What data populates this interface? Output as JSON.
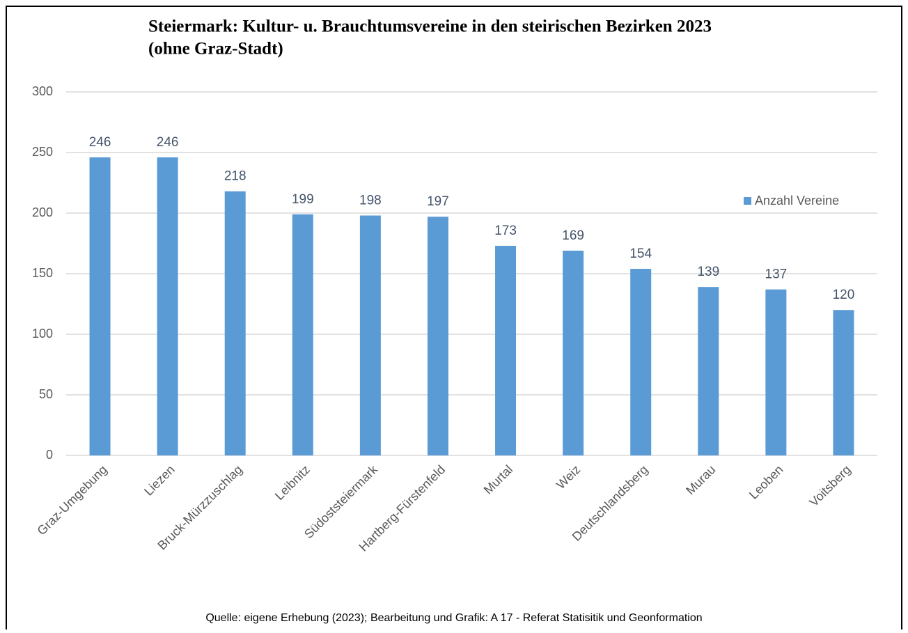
{
  "chart_data": {
    "type": "bar",
    "title": "Steiermark: Kultur- u. Brauchtumsvereine in den steirischen Bezirken 2023",
    "subtitle": "(ohne Graz-Stadt)",
    "source": "Quelle: eigene Erhebung (2023); Bearbeitung und Grafik: A 17 - Referat Statisitik und Geonformation",
    "categories": [
      "Graz-Umgebung",
      "Liezen",
      "Bruck-Mürzzuschlag",
      "Leibnitz",
      "Südoststeiermark",
      "Hartberg-Fürstenfeld",
      "Murtal",
      "Weiz",
      "Deutschlandsberg",
      "Murau",
      "Leoben",
      "Voitsberg"
    ],
    "series": [
      {
        "name": "Anzahl Vereine",
        "color": "#5b9bd5",
        "values": [
          246,
          246,
          218,
          199,
          198,
          197,
          173,
          169,
          154,
          139,
          137,
          120
        ]
      }
    ],
    "ylim": [
      0,
      300
    ],
    "yticks": [
      0,
      50,
      100,
      150,
      200,
      250,
      300
    ],
    "grid": true,
    "legend": "right"
  }
}
